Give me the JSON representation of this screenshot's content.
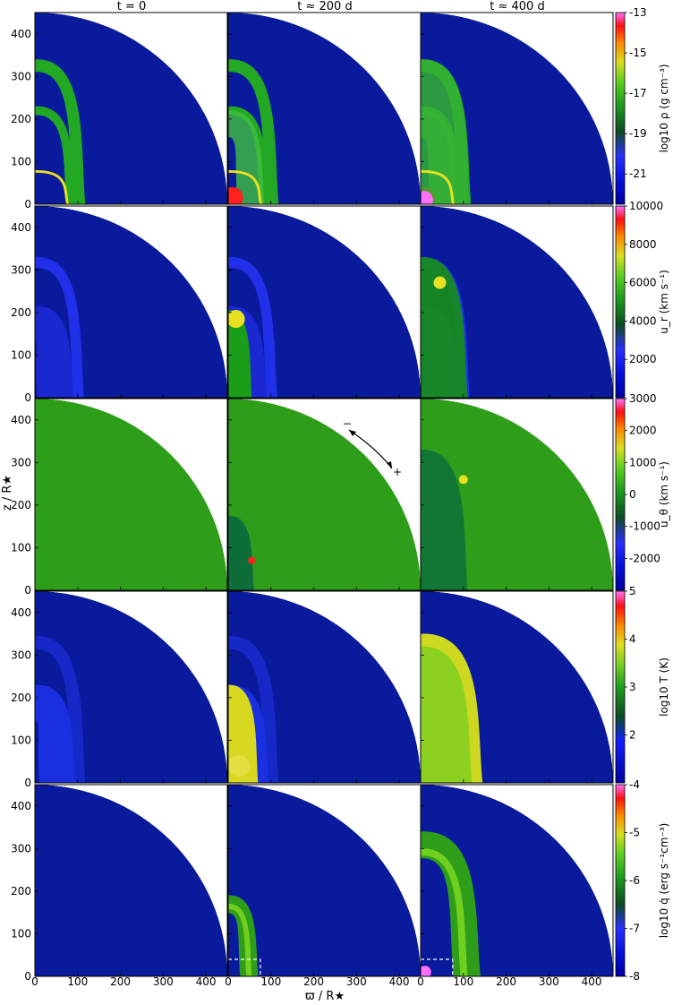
{
  "chart_data": {
    "type": "heatmap",
    "description_free": true,
    "column_titles": [
      "t = 0",
      "t ≈ 200 d",
      "t ≈ 400 d"
    ],
    "xlabel": "ϖ / R★",
    "ylabel": "z / R★",
    "xlim": [
      0,
      450
    ],
    "ylim": [
      0,
      450
    ],
    "x_ticks": [
      0,
      100,
      200,
      300,
      400
    ],
    "y_ticks": [
      0,
      100,
      200,
      300,
      400
    ],
    "domain_radius": 450,
    "rows": [
      {
        "quantity": "log10 ρ (g cm⁻³)",
        "colorbar_ticks": [
          "-13",
          "-15",
          "-17",
          "-19",
          "-21"
        ],
        "colorbar_range": [
          -22.5,
          -13
        ]
      },
      {
        "quantity": "u_r (km s⁻¹)",
        "colorbar_ticks": [
          "10000",
          "8000",
          "6000",
          "4000",
          "2000"
        ],
        "colorbar_range": [
          0,
          10000
        ]
      },
      {
        "quantity": "u_θ (km s⁻¹)",
        "colorbar_ticks": [
          "3000",
          "2000",
          "1000",
          "0",
          "-1000",
          "-2000"
        ],
        "colorbar_range": [
          -3000,
          3000
        ],
        "annotation_minus": "−",
        "annotation_plus": "+"
      },
      {
        "quantity": "log10 T (K)",
        "colorbar_ticks": [
          "5",
          "4",
          "3",
          "2"
        ],
        "colorbar_range": [
          1,
          5
        ]
      },
      {
        "quantity": "log10 q̇ (erg s⁻¹cm⁻³)",
        "colorbar_ticks": [
          "-4",
          "-5",
          "-6",
          "-7",
          "-8"
        ],
        "colorbar_range": [
          -8,
          -4
        ]
      }
    ]
  },
  "colors": {
    "background_field": "#0a1a9c",
    "shell": "#23a823",
    "dark_shell": "#0d6e3a",
    "hot": "#e8e020",
    "core": "#ff2020",
    "vel_field": "#2e9e1a"
  }
}
